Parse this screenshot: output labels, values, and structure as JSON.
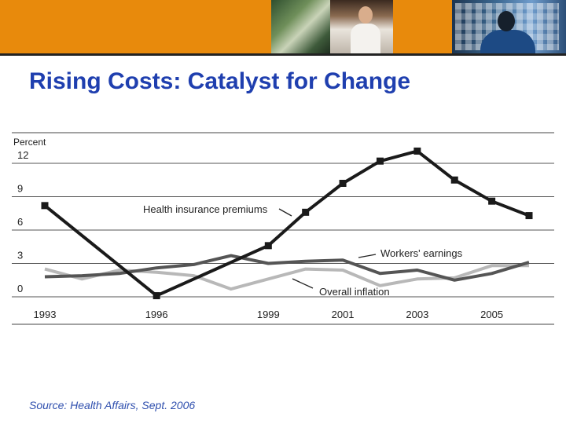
{
  "slide": {
    "title": "Rising Costs: Catalyst for Change",
    "source": "Source: Health Affairs, Sept. 2006"
  },
  "colors": {
    "banner": "#e88a0c",
    "title": "#1f3faf",
    "source": "#2f4fae"
  },
  "chart_data": {
    "type": "line",
    "ylabel": "Percent",
    "ylim": [
      0,
      12
    ],
    "yticks": [
      "0",
      "3",
      "6",
      "9",
      "12"
    ],
    "xticks": [
      "1993",
      "1996",
      "1999",
      "2001",
      "2003",
      "2005"
    ],
    "x_range": [
      1993,
      2006
    ],
    "grid": true,
    "series": [
      {
        "name": "Health insurance premiums",
        "color": "#1a1a1a",
        "markers": true,
        "x": [
          1993,
          1996,
          1999,
          2000,
          2001,
          2002,
          2003,
          2004,
          2005,
          2006
        ],
        "y": [
          8.2,
          0.1,
          4.6,
          7.6,
          10.2,
          12.2,
          13.1,
          10.5,
          8.6,
          7.3
        ]
      },
      {
        "name": "Workers' earnings",
        "color": "#555555",
        "markers": false,
        "x": [
          1993,
          1994,
          1995,
          1996,
          1997,
          1998,
          1999,
          2000,
          2001,
          2002,
          2003,
          2004,
          2005,
          2006
        ],
        "y": [
          1.8,
          1.9,
          2.1,
          2.6,
          2.9,
          3.7,
          3.0,
          3.2,
          3.3,
          2.1,
          2.4,
          1.5,
          2.1,
          3.1
        ]
      },
      {
        "name": "Overall inflation",
        "color": "#b8b8b8",
        "markers": false,
        "x": [
          1993,
          1994,
          1995,
          1996,
          1997,
          1998,
          1999,
          2000,
          2001,
          2002,
          2003,
          2004,
          2005,
          2006
        ],
        "y": [
          2.5,
          1.6,
          2.4,
          2.2,
          1.9,
          0.7,
          1.6,
          2.5,
          2.4,
          1.0,
          1.6,
          1.7,
          2.8,
          2.8
        ]
      }
    ]
  }
}
